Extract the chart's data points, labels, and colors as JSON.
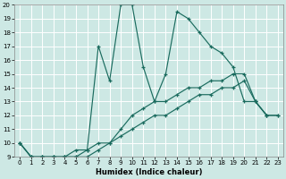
{
  "bg_color": "#cde8e4",
  "line_color": "#1a6b5e",
  "grid_color": "#ffffff",
  "xlabel": "Humidex (Indice chaleur)",
  "xlim": [
    -0.5,
    23.5
  ],
  "ylim": [
    9,
    20
  ],
  "yticks": [
    9,
    10,
    11,
    12,
    13,
    14,
    15,
    16,
    17,
    18,
    19,
    20
  ],
  "xticks": [
    0,
    1,
    2,
    3,
    4,
    5,
    6,
    7,
    8,
    9,
    10,
    11,
    12,
    13,
    14,
    15,
    16,
    17,
    18,
    19,
    20,
    21,
    22,
    23
  ],
  "series": [
    {
      "x": [
        0,
        1,
        2,
        3,
        4,
        5,
        6,
        7,
        8,
        9,
        10,
        11,
        12,
        13,
        14,
        15,
        16,
        17,
        18,
        19,
        20,
        21,
        22
      ],
      "y": [
        10,
        9,
        9,
        9,
        9,
        9.5,
        9.5,
        17,
        14.5,
        20,
        20,
        15.5,
        13,
        15,
        19.5,
        19,
        18,
        17,
        16.5,
        15.5,
        13,
        13,
        12
      ]
    },
    {
      "x": [
        0,
        1,
        2,
        3,
        4,
        5,
        6,
        7,
        8,
        9,
        10,
        11,
        12,
        13,
        14,
        15,
        16,
        17,
        18,
        19,
        20,
        21,
        22,
        23
      ],
      "y": [
        10,
        9,
        9,
        9,
        9,
        9,
        9.5,
        10,
        10,
        11,
        12,
        12.5,
        13,
        13,
        13.5,
        14,
        14,
        14.5,
        14.5,
        15,
        15,
        13,
        12,
        12
      ]
    },
    {
      "x": [
        0,
        1,
        2,
        3,
        4,
        5,
        6,
        7,
        8,
        9,
        10,
        11,
        12,
        13,
        14,
        15,
        16,
        17,
        18,
        19,
        20,
        21,
        22,
        23
      ],
      "y": [
        10,
        9,
        9,
        9,
        9,
        9,
        9,
        9.5,
        10,
        10.5,
        11,
        11.5,
        12,
        12,
        12.5,
        13,
        13.5,
        13.5,
        14,
        14,
        14.5,
        13,
        12,
        12
      ]
    }
  ]
}
